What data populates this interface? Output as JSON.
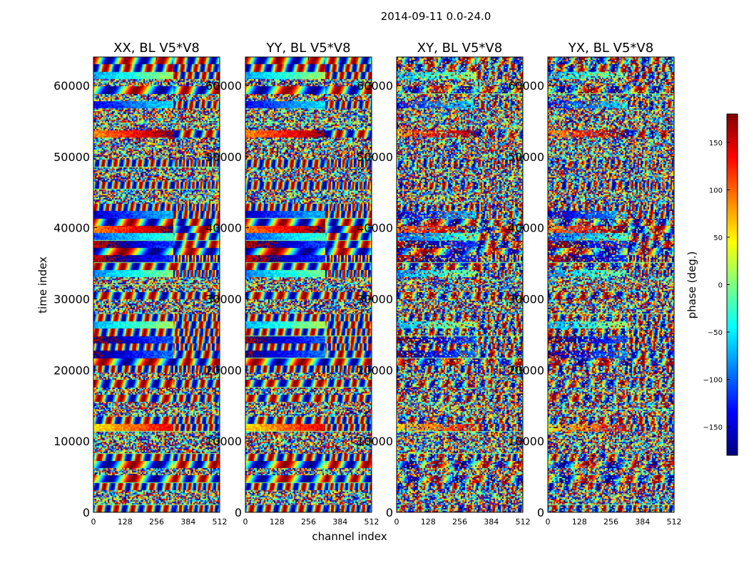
{
  "figure": {
    "suptitle": "2014-09-11 0.0-24.0"
  },
  "chart_data": {
    "type": "heatmap",
    "suptitle": "2014-09-11 0.0-24.0",
    "xlabel": "channel index",
    "ylabel": "time index",
    "xlim": [
      0,
      512
    ],
    "ylim": [
      0,
      64000
    ],
    "x_ticks": [
      0,
      128,
      256,
      384,
      512
    ],
    "y_ticks": [
      0,
      10000,
      20000,
      30000,
      40000,
      50000,
      60000
    ],
    "panels": [
      {
        "title": "XX, BL V5*V8"
      },
      {
        "title": "YY, BL V5*V8"
      },
      {
        "title": "XY, BL V5*V8"
      },
      {
        "title": "YX, BL V5*V8"
      }
    ],
    "colorbar": {
      "label": "phase (deg.)",
      "range": [
        -180,
        180
      ],
      "ticks": [
        -150,
        -100,
        -50,
        0,
        50,
        100,
        150
      ],
      "tick_labels": [
        "−150",
        "−100",
        "−50",
        "0",
        "50",
        "100",
        "150"
      ],
      "colormap": "jet",
      "colormap_colors": [
        "#00007f",
        "#0000ff",
        "#007fff",
        "#00ffff",
        "#7fff7f",
        "#ffff00",
        "#ff7f00",
        "#ff0000",
        "#7f0000"
      ]
    }
  }
}
